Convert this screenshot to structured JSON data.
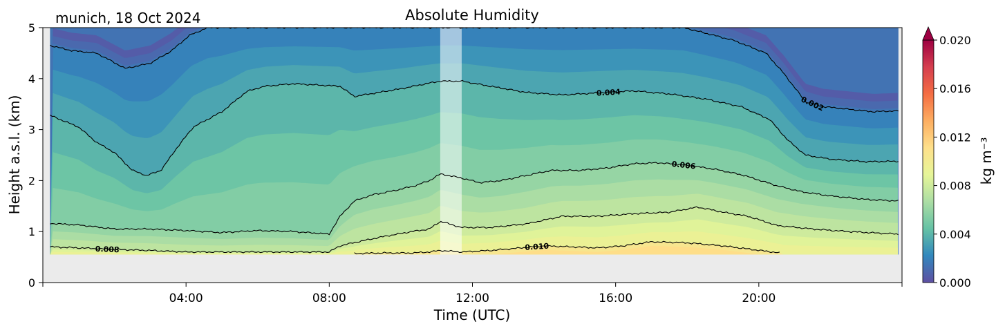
{
  "chart_data": {
    "type": "heatmap",
    "title": "Absolute Humidity",
    "subtitle": "munich, 18 Oct 2024",
    "xlabel": "Time (UTC)",
    "ylabel": "Height a.s.l. (km)",
    "xlim": [
      0,
      24
    ],
    "ylim": [
      0,
      5
    ],
    "x_ticks": [
      {
        "value": 4,
        "label": "04:00"
      },
      {
        "value": 8,
        "label": "08:00"
      },
      {
        "value": 12,
        "label": "12:00"
      },
      {
        "value": 16,
        "label": "16:00"
      },
      {
        "value": 20,
        "label": "20:00"
      }
    ],
    "y_ticks": [
      {
        "value": 0,
        "label": "0"
      },
      {
        "value": 1,
        "label": "1"
      },
      {
        "value": 2,
        "label": "2"
      },
      {
        "value": 3,
        "label": "3"
      },
      {
        "value": 4,
        "label": "4"
      },
      {
        "value": 5,
        "label": "5"
      }
    ],
    "colorbar": {
      "label": "kg m⁻³",
      "range": [
        0,
        0.02
      ],
      "ticks": [
        {
          "value": 0.0,
          "label": "0.000"
        },
        {
          "value": 0.004,
          "label": "0.004"
        },
        {
          "value": 0.008,
          "label": "0.008"
        },
        {
          "value": 0.012,
          "label": "0.012"
        },
        {
          "value": 0.016,
          "label": "0.016"
        },
        {
          "value": 0.02,
          "label": "0.020"
        }
      ],
      "colors": [
        "#5e4fa2",
        "#3288bd",
        "#66c2a5",
        "#abdda4",
        "#e6f598",
        "#fee08b",
        "#fdae61",
        "#f46d43",
        "#d53e4f",
        "#9e0142"
      ]
    },
    "data_start_height": 0.55,
    "gap": {
      "start": 11.1,
      "end": 11.7
    },
    "contours": [
      {
        "level": "0.002",
        "label": "0.002",
        "label_at": 21.5,
        "points": [
          [
            0.2,
            4.65
          ],
          [
            0.8,
            4.55
          ],
          [
            1.5,
            4.5
          ],
          [
            2.3,
            4.2
          ],
          [
            3.0,
            4.3
          ],
          [
            3.6,
            4.55
          ],
          [
            4.1,
            4.85
          ],
          [
            4.6,
            5.0
          ],
          [
            17.9,
            5.0
          ],
          [
            19.3,
            4.75
          ],
          [
            20.2,
            4.5
          ],
          [
            20.7,
            4.1
          ],
          [
            21.3,
            3.55
          ],
          [
            21.8,
            3.45
          ],
          [
            22.5,
            3.4
          ],
          [
            23.2,
            3.35
          ],
          [
            23.9,
            3.37
          ]
        ]
      },
      {
        "level": "0.004",
        "label": "0.004",
        "label_at": 15.8,
        "points": [
          [
            0.2,
            3.28
          ],
          [
            1.0,
            3.05
          ],
          [
            1.5,
            2.75
          ],
          [
            2.0,
            2.55
          ],
          [
            2.5,
            2.2
          ],
          [
            2.9,
            2.1
          ],
          [
            3.3,
            2.2
          ],
          [
            3.7,
            2.6
          ],
          [
            4.2,
            3.05
          ],
          [
            5.0,
            3.35
          ],
          [
            5.7,
            3.75
          ],
          [
            6.2,
            3.85
          ],
          [
            7.0,
            3.9
          ],
          [
            8.3,
            3.85
          ],
          [
            8.7,
            3.65
          ],
          [
            9.3,
            3.72
          ],
          [
            10.0,
            3.8
          ],
          [
            10.7,
            3.9
          ],
          [
            11.1,
            3.95
          ],
          [
            11.7,
            3.95
          ],
          [
            12.5,
            3.85
          ],
          [
            13.5,
            3.73
          ],
          [
            14.5,
            3.68
          ],
          [
            15.5,
            3.72
          ],
          [
            16.5,
            3.76
          ],
          [
            17.5,
            3.7
          ],
          [
            18.5,
            3.6
          ],
          [
            19.5,
            3.45
          ],
          [
            20.3,
            3.2
          ],
          [
            20.8,
            2.8
          ],
          [
            21.3,
            2.5
          ],
          [
            22.0,
            2.42
          ],
          [
            23.0,
            2.37
          ],
          [
            23.9,
            2.38
          ]
        ]
      },
      {
        "level": "0.006",
        "label": "0.006",
        "label_at": 17.9,
        "points": [
          [
            0.2,
            1.16
          ],
          [
            1.0,
            1.13
          ],
          [
            2.0,
            1.05
          ],
          [
            3.0,
            1.05
          ],
          [
            4.0,
            1.02
          ],
          [
            5.0,
            0.98
          ],
          [
            6.0,
            1.02
          ],
          [
            7.0,
            1.0
          ],
          [
            8.0,
            0.95
          ],
          [
            8.3,
            1.3
          ],
          [
            8.7,
            1.6
          ],
          [
            9.2,
            1.72
          ],
          [
            9.8,
            1.8
          ],
          [
            10.4,
            1.9
          ],
          [
            10.8,
            2.0
          ],
          [
            11.1,
            2.13
          ],
          [
            11.7,
            2.05
          ],
          [
            12.2,
            1.96
          ],
          [
            12.8,
            2.0
          ],
          [
            13.5,
            2.1
          ],
          [
            14.2,
            2.2
          ],
          [
            15.0,
            2.2
          ],
          [
            15.8,
            2.25
          ],
          [
            16.5,
            2.33
          ],
          [
            17.2,
            2.35
          ],
          [
            18.0,
            2.3
          ],
          [
            18.8,
            2.22
          ],
          [
            19.6,
            2.1
          ],
          [
            20.5,
            1.9
          ],
          [
            21.2,
            1.78
          ],
          [
            22.0,
            1.7
          ],
          [
            23.0,
            1.63
          ],
          [
            23.9,
            1.6
          ]
        ]
      },
      {
        "level": "0.008",
        "label": "0.008",
        "label_at": 1.8,
        "points": [
          [
            0.2,
            0.7
          ],
          [
            1.0,
            0.68
          ],
          [
            2.0,
            0.65
          ],
          [
            3.0,
            0.63
          ],
          [
            4.0,
            0.6
          ],
          [
            5.0,
            0.6
          ],
          [
            6.0,
            0.6
          ],
          [
            7.0,
            0.6
          ],
          [
            8.0,
            0.6
          ],
          [
            8.3,
            0.72
          ],
          [
            8.8,
            0.8
          ],
          [
            9.5,
            0.9
          ],
          [
            10.3,
            1.0
          ],
          [
            10.8,
            1.05
          ],
          [
            11.1,
            1.2
          ],
          [
            11.7,
            1.08
          ],
          [
            12.5,
            1.08
          ],
          [
            13.5,
            1.15
          ],
          [
            14.5,
            1.3
          ],
          [
            15.5,
            1.3
          ],
          [
            16.5,
            1.35
          ],
          [
            17.5,
            1.38
          ],
          [
            18.3,
            1.48
          ],
          [
            19.0,
            1.38
          ],
          [
            19.7,
            1.3
          ],
          [
            20.5,
            1.12
          ],
          [
            21.5,
            1.05
          ],
          [
            22.5,
            1.0
          ],
          [
            23.9,
            0.95
          ]
        ]
      },
      {
        "level": "0.010",
        "label": "0.010",
        "label_at": 13.8,
        "points": [
          [
            8.7,
            0.57
          ],
          [
            9.5,
            0.58
          ],
          [
            10.3,
            0.58
          ],
          [
            10.8,
            0.6
          ],
          [
            11.1,
            0.63
          ],
          [
            11.7,
            0.6
          ],
          [
            12.5,
            0.63
          ],
          [
            13.2,
            0.67
          ],
          [
            14.0,
            0.72
          ],
          [
            14.8,
            0.7
          ],
          [
            15.5,
            0.68
          ],
          [
            16.2,
            0.72
          ],
          [
            17.0,
            0.8
          ],
          [
            18.0,
            0.78
          ],
          [
            19.0,
            0.72
          ],
          [
            19.8,
            0.65
          ],
          [
            20.6,
            0.58
          ]
        ]
      }
    ]
  }
}
